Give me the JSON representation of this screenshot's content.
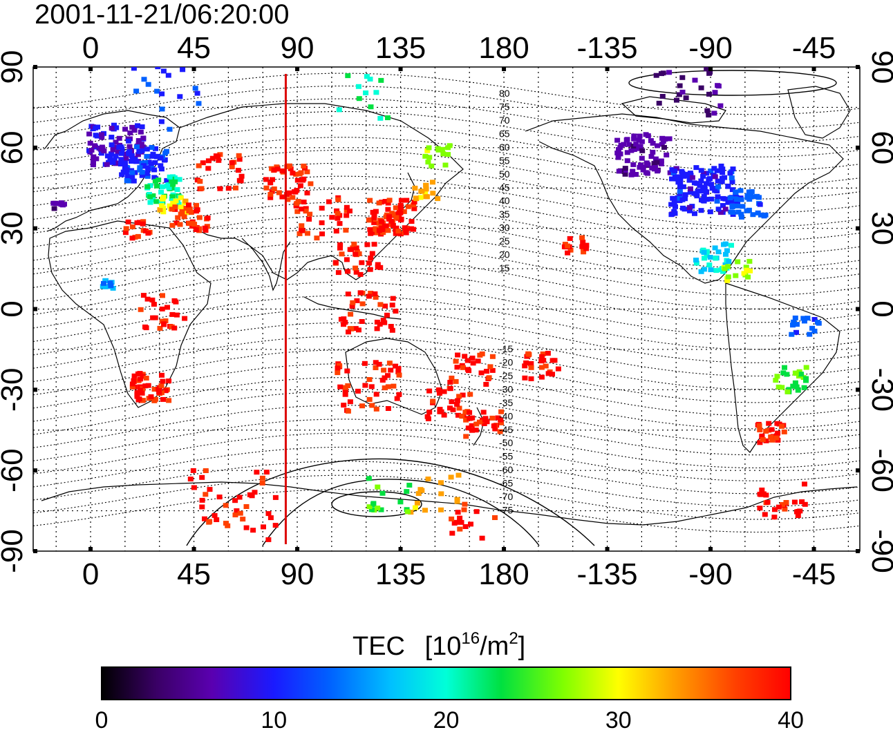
{
  "timestamp": "2001-11-21/06:20:00",
  "map": {
    "lon_ticks_top": [
      "0",
      "45",
      "90",
      "135",
      "180",
      "-135",
      "-90",
      "-45"
    ],
    "lon_ticks_bottom": [
      "0",
      "45",
      "90",
      "135",
      "180",
      "-135",
      "-90",
      "-45"
    ],
    "lat_ticks_left": [
      "90",
      "60",
      "30",
      "0",
      "-30",
      "-60",
      "-90"
    ],
    "lat_ticks_right": [
      "90",
      "60",
      "30",
      "0",
      "-30",
      "-60",
      "-90"
    ],
    "lon_range": [
      -25,
      335
    ],
    "lat_range": [
      -90,
      90
    ],
    "marker_line_longitude": 85,
    "marker_line_color": "#dd0000",
    "contour_labels": [
      "80",
      "75",
      "70",
      "65",
      "60",
      "55",
      "50",
      "45",
      "40",
      "35",
      "30",
      "25",
      "20",
      "15",
      "-15",
      "-20",
      "-25",
      "-30",
      "-35",
      "-40",
      "-45",
      "-50",
      "-55",
      "-60",
      "-65",
      "-70",
      "-75"
    ]
  },
  "colorbar": {
    "title": "TEC",
    "unit_base": "[10",
    "unit_exp": "16",
    "unit_mid": "/m",
    "unit_exp2": "2",
    "unit_end": "]",
    "ticks": [
      "0",
      "10",
      "20",
      "30",
      "40"
    ],
    "range": [
      0,
      40
    ],
    "colors": [
      "#000000",
      "#3a0066",
      "#5a00b0",
      "#1a1aff",
      "#0060ff",
      "#00c0ff",
      "#00ffd8",
      "#00e040",
      "#80ff00",
      "#ffff00",
      "#ffa000",
      "#ff4000",
      "#ff0000"
    ]
  }
}
